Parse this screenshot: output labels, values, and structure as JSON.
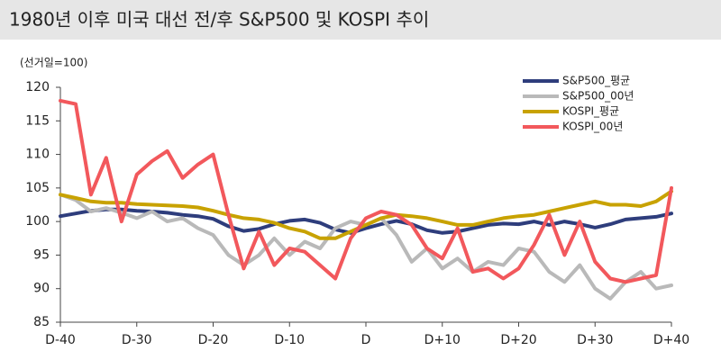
{
  "chart_data": {
    "type": "line",
    "title": "1980년 이후 미국 대선 전/후 S&P500 및 KOSPI 추이",
    "y_label": "(선거일=100)",
    "x": [
      -40,
      -38,
      -36,
      -34,
      -32,
      -30,
      -28,
      -26,
      -24,
      -22,
      -20,
      -18,
      -16,
      -14,
      -12,
      -10,
      -8,
      -6,
      -4,
      -2,
      0,
      2,
      4,
      6,
      8,
      10,
      12,
      14,
      16,
      18,
      20,
      22,
      24,
      26,
      28,
      30,
      32,
      34,
      36,
      38,
      40
    ],
    "series": [
      {
        "name": "S&P500_평균",
        "color": "#2e3d7c",
        "values": [
          100.8,
          101.2,
          101.6,
          101.8,
          101.8,
          101.6,
          101.5,
          101.3,
          101.0,
          100.8,
          100.4,
          99.3,
          98.6,
          98.9,
          99.6,
          100.1,
          100.3,
          99.8,
          98.8,
          98.3,
          99.0,
          99.6,
          100.1,
          99.6,
          98.7,
          98.3,
          98.5,
          99.0,
          99.5,
          99.7,
          99.6,
          100.0,
          99.5,
          100.0,
          99.6,
          99.1,
          99.6,
          100.3,
          100.5,
          100.7,
          101.2
        ]
      },
      {
        "name": "S&P500_00년",
        "color": "#b9b9b9",
        "values": [
          104,
          103.2,
          101.5,
          102,
          101.3,
          100.5,
          101.5,
          100,
          100.5,
          99,
          98,
          95,
          93.5,
          95,
          97.5,
          95,
          97,
          96,
          99,
          100,
          99.5,
          100.5,
          98,
          94,
          96,
          93,
          94.5,
          92.5,
          94,
          93.5,
          96,
          95.5,
          92.5,
          91,
          93.5,
          90,
          88.5,
          91,
          92.5,
          90,
          90.5
        ]
      },
      {
        "name": "KOSPI_평균",
        "color": "#c8a200",
        "values": [
          104,
          103.5,
          103,
          102.8,
          102.8,
          102.6,
          102.5,
          102.4,
          102.3,
          102.1,
          101.6,
          101,
          100.5,
          100.3,
          99.8,
          99,
          98.5,
          97.5,
          97.5,
          98.5,
          99.5,
          100.5,
          101,
          100.8,
          100.5,
          100,
          99.5,
          99.5,
          100,
          100.5,
          100.8,
          101,
          101.5,
          102,
          102.5,
          103,
          102.5,
          102.5,
          102.3,
          103,
          104.5
        ]
      },
      {
        "name": "KOSPI_00년",
        "color": "#f2585c",
        "values": [
          118,
          117.5,
          104,
          109.5,
          100,
          107,
          109,
          110.5,
          106.5,
          108.5,
          110,
          101,
          93,
          98.5,
          93.5,
          96,
          95.5,
          93.5,
          91.5,
          97.5,
          100.5,
          101.5,
          101,
          99.5,
          96,
          94.5,
          99,
          92.5,
          93,
          91.5,
          93,
          96.5,
          101,
          95,
          100,
          94,
          91.5,
          91,
          91.5,
          92,
          105
        ]
      }
    ],
    "xlim": [
      -40,
      40
    ],
    "xticks": [
      {
        "value": -40,
        "label": "D-40"
      },
      {
        "value": -30,
        "label": "D-30"
      },
      {
        "value": -20,
        "label": "D-20"
      },
      {
        "value": -10,
        "label": "D-10"
      },
      {
        "value": 0,
        "label": "D"
      },
      {
        "value": 10,
        "label": "D+10"
      },
      {
        "value": 20,
        "label": "D+20"
      },
      {
        "value": 30,
        "label": "D+30"
      },
      {
        "value": 40,
        "label": "D+40"
      }
    ],
    "ylim": [
      85,
      120
    ],
    "yticks": [
      85,
      90,
      95,
      100,
      105,
      110,
      115,
      120
    ],
    "grid": false,
    "legend": "upper right"
  }
}
